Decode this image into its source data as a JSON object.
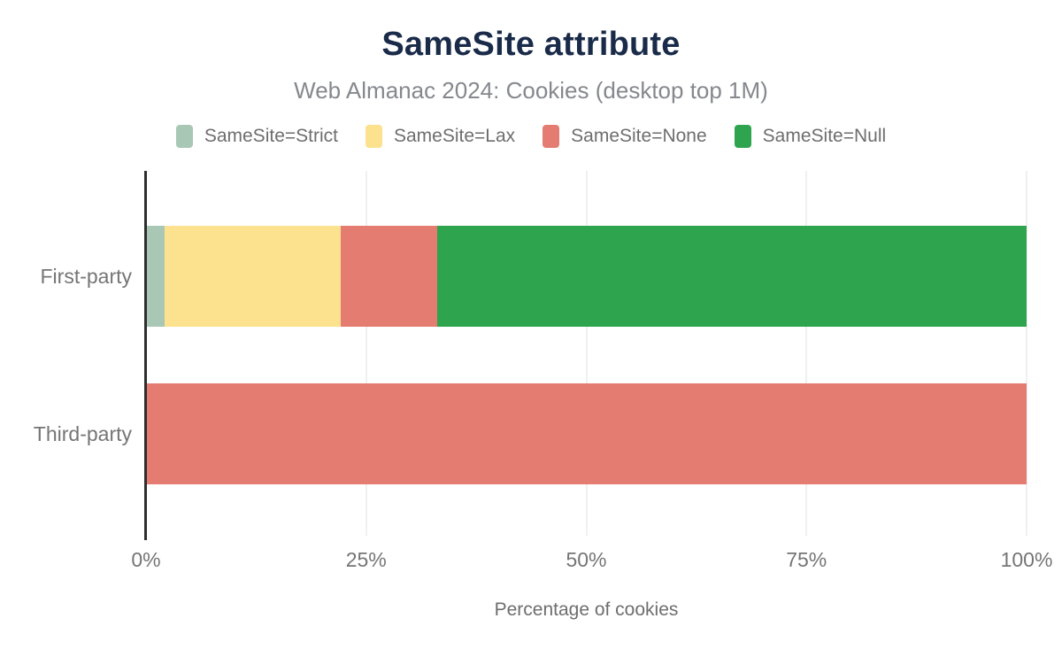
{
  "chart_data": {
    "type": "bar",
    "orientation": "horizontal",
    "stacked": true,
    "title": "SameSite attribute",
    "subtitle": "Web Almanac 2024: Cookies (desktop top 1M)",
    "xlabel": "Percentage of cookies",
    "ylabel": "",
    "categories": [
      "First-party",
      "Third-party"
    ],
    "series": [
      {
        "name": "SameSite=Strict",
        "color": "#a8c8b5",
        "values": [
          2,
          0
        ]
      },
      {
        "name": "SameSite=Lax",
        "color": "#fce18f",
        "values": [
          20,
          0
        ]
      },
      {
        "name": "SameSite=None",
        "color": "#e57c71",
        "values": [
          11,
          100
        ]
      },
      {
        "name": "SameSite=Null",
        "color": "#2ea44f",
        "values": [
          67,
          0
        ]
      }
    ],
    "xlim": [
      0,
      100
    ],
    "xticks": [
      0,
      25,
      50,
      75,
      100
    ],
    "xtick_suffix": "%",
    "grid": "vertical",
    "legend_position": "top"
  },
  "colors": {
    "title": "#1a2b49",
    "subtitle": "#85888d",
    "axis_line": "#2e2e2e",
    "gridline": "#f0f0f0",
    "tick_label": "#757575",
    "background": "#ffffff"
  }
}
